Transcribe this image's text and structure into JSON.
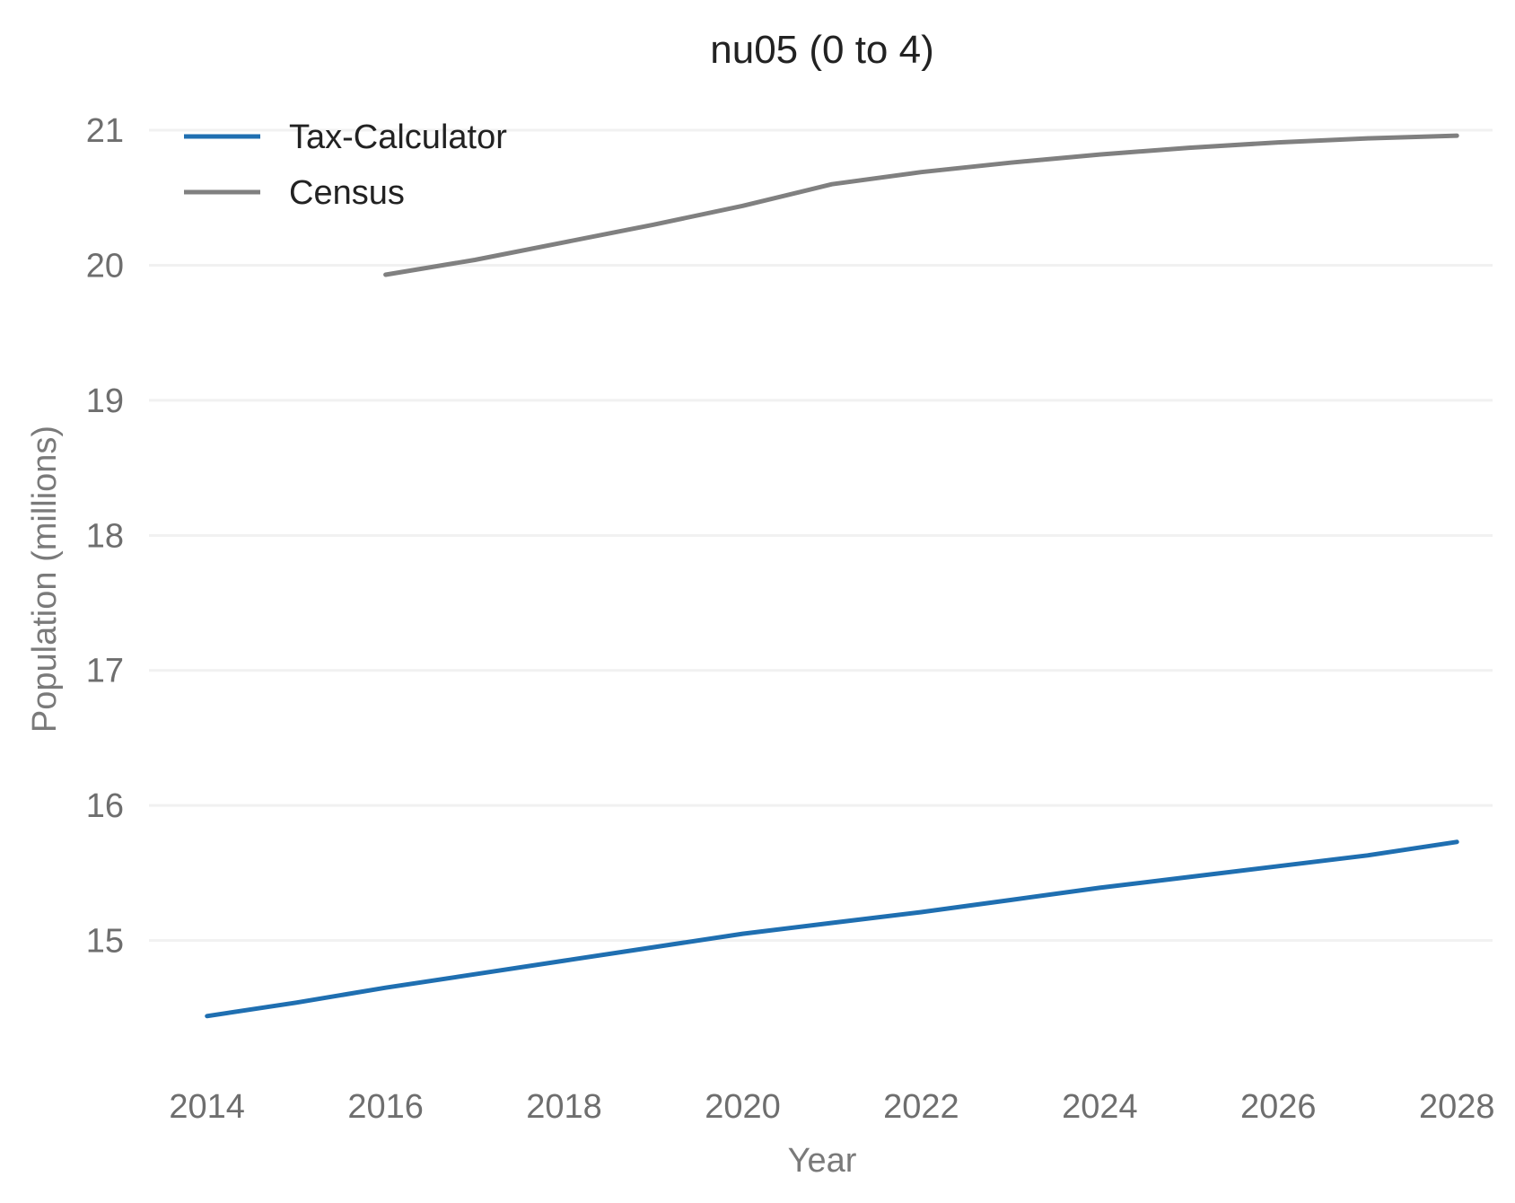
{
  "chart_data": {
    "type": "line",
    "title": "nu05 (0 to 4)",
    "xlabel": "Year",
    "ylabel": "Population (millions)",
    "x": [
      2014,
      2015,
      2016,
      2017,
      2018,
      2019,
      2020,
      2021,
      2022,
      2023,
      2024,
      2025,
      2026,
      2027,
      2028
    ],
    "xticks": [
      2014,
      2016,
      2018,
      2020,
      2022,
      2024,
      2026,
      2028
    ],
    "yticks": [
      15,
      16,
      17,
      18,
      19,
      20,
      21
    ],
    "xlim": [
      2013.35,
      2028.4
    ],
    "ylim": [
      14.0,
      21.12
    ],
    "grid": "horizontal",
    "legend_position": "top-left",
    "series": [
      {
        "name": "Tax-Calculator",
        "color": "#1f6fb1",
        "x": [
          2014,
          2015,
          2016,
          2017,
          2018,
          2019,
          2020,
          2021,
          2022,
          2023,
          2024,
          2025,
          2026,
          2027,
          2028
        ],
        "values": [
          14.44,
          14.54,
          14.65,
          14.75,
          14.85,
          14.95,
          15.05,
          15.13,
          15.21,
          15.3,
          15.39,
          15.47,
          15.55,
          15.63,
          15.73
        ]
      },
      {
        "name": "Census",
        "color": "#808080",
        "x": [
          2016,
          2017,
          2018,
          2019,
          2020,
          2021,
          2022,
          2023,
          2024,
          2025,
          2026,
          2027,
          2028
        ],
        "values": [
          19.93,
          20.04,
          20.17,
          20.3,
          20.44,
          20.6,
          20.69,
          20.76,
          20.82,
          20.87,
          20.91,
          20.94,
          20.96
        ]
      }
    ]
  }
}
